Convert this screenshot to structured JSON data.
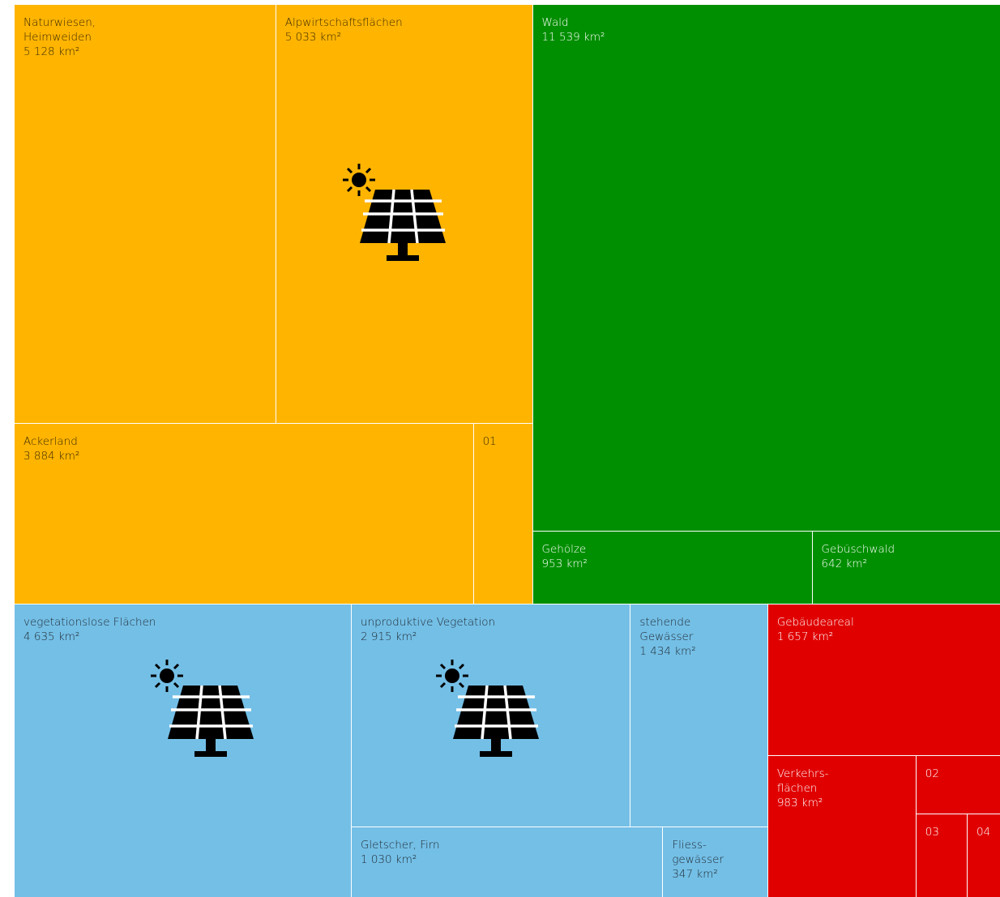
{
  "chart_data": {
    "type": "treemap",
    "groups": [
      {
        "color": "#ffb400",
        "text_color": "#3a2a00",
        "labels": [
          "Naturwiesen,\nHeimweiden",
          "Alpwirtschaftsflächen",
          "Ackerland",
          "01"
        ],
        "values": [
          5128,
          5033,
          3884,
          500
        ],
        "value_labels": [
          "5 128 km²",
          "5 033 km²",
          "3 884 km²",
          null
        ]
      },
      {
        "color": "#008f00",
        "text_color": "#ffffff",
        "labels": [
          "Wald",
          "Gehölze",
          "Gebüschwald"
        ],
        "values": [
          11539,
          953,
          642
        ],
        "value_labels": [
          "11 539 km²",
          "953 km²",
          "642 km²"
        ]
      },
      {
        "color": "#74bfe6",
        "text_color": "#1f2a33",
        "labels": [
          "vegetationslose Flächen",
          "unproduktive Vegetation",
          "stehende\nGewässer",
          "Gletscher, Firn",
          "Fliess-\ngewässer"
        ],
        "values": [
          4635,
          2915,
          1434,
          1030,
          347
        ],
        "value_labels": [
          "4 635 km²",
          "2 915 km²",
          "1 434 km²",
          "1 030 km²",
          "347 km²"
        ]
      },
      {
        "color": "#e00000",
        "text_color": "#ffffff",
        "labels": [
          "Gebäudeareal",
          "Verkehrs-\nflächen",
          "02",
          "03",
          "04"
        ],
        "values": [
          1657,
          983,
          230,
          200,
          130
        ],
        "value_labels": [
          "1 657 km²",
          "983 km²",
          null,
          null,
          null
        ]
      }
    ]
  }
}
